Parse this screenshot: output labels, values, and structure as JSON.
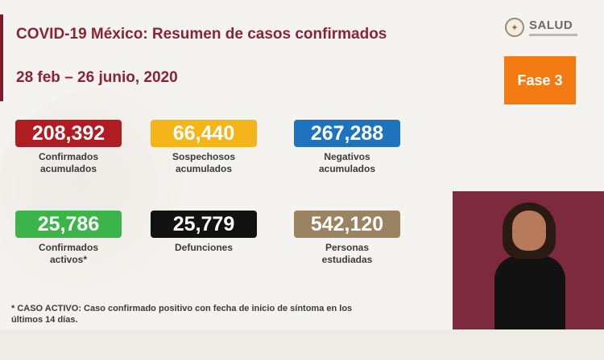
{
  "header": {
    "title": "COVID-19 México: Resumen de casos confirmados",
    "subtitle": "28 feb – 26 junio, 2020"
  },
  "logo": {
    "name": "SALUD"
  },
  "phase": {
    "label": "Fase 3",
    "color": "#f47a12"
  },
  "stats": [
    {
      "value": "208,392",
      "label_line1": "Confirmados",
      "label_line2": "acumulados",
      "color": "#b01c22"
    },
    {
      "value": "66,440",
      "label_line1": "Sospechosos",
      "label_line2": "acumulados",
      "color": "#f5b51a"
    },
    {
      "value": "267,288",
      "label_line1": "Negativos",
      "label_line2": "acumulados",
      "color": "#1e73be"
    },
    {
      "value": "25,786",
      "label_line1": "Confirmados",
      "label_line2": "activos*",
      "color": "#3bb54a"
    },
    {
      "value": "25,779",
      "label_line1": "Defunciones",
      "label_line2": "",
      "color": "#121212"
    },
    {
      "value": "542,120",
      "label_line1": "Personas",
      "label_line2": "estudiadas",
      "color": "#9a8360"
    }
  ],
  "footnote": {
    "line1": "* CASO ACTIVO: Caso confirmado positivo con fecha de inicio de síntoma en los",
    "line2": "últimos 14 días."
  },
  "icons": [
    "seal-icon"
  ]
}
